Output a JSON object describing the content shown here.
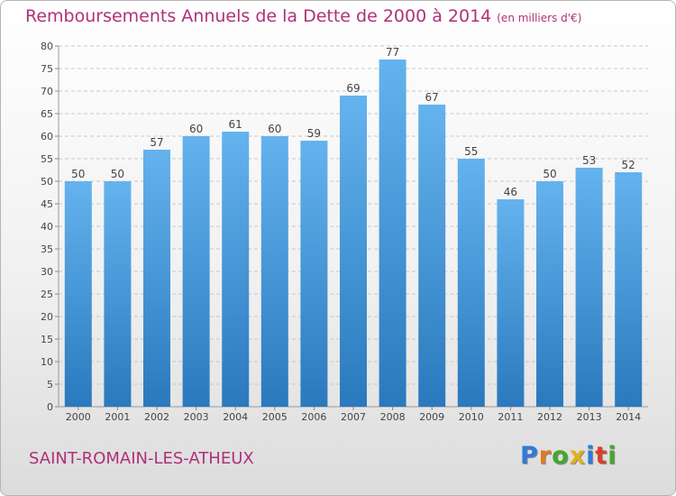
{
  "header": {
    "title": "Remboursements Annuels de la Dette de 2000 à 2014",
    "subtitle": "(en milliers d'€)"
  },
  "footer": {
    "commune": "SAINT-ROMAIN-LES-ATHEUX",
    "logo_letters": [
      "P",
      "r",
      "o",
      "x",
      "i",
      "t",
      "i"
    ],
    "logo_colors": [
      "#2f7bd6",
      "#e07a1f",
      "#43a82f",
      "#e0b11a",
      "#2f7bd6",
      "#d94028",
      "#43a82f"
    ]
  },
  "colors": {
    "bar_top": "#64b3ee",
    "bar_bottom": "#2a79bd",
    "title": "#b0307a",
    "grid": "#c8c8c8"
  },
  "chart_data": {
    "type": "bar",
    "title": "Remboursements Annuels de la Dette de 2000 à 2014",
    "subtitle": "(en milliers d'€)",
    "categories": [
      "2000",
      "2001",
      "2002",
      "2003",
      "2004",
      "2005",
      "2006",
      "2007",
      "2008",
      "2009",
      "2010",
      "2011",
      "2012",
      "2013",
      "2014"
    ],
    "values": [
      50,
      50,
      57,
      60,
      61,
      60,
      59,
      69,
      77,
      67,
      55,
      46,
      50,
      53,
      52
    ],
    "ylim": [
      0,
      80
    ],
    "yticks": [
      0,
      5,
      10,
      15,
      20,
      25,
      30,
      35,
      40,
      45,
      50,
      55,
      60,
      65,
      70,
      75,
      80
    ],
    "xlabel": "",
    "ylabel": "",
    "grid": true
  }
}
